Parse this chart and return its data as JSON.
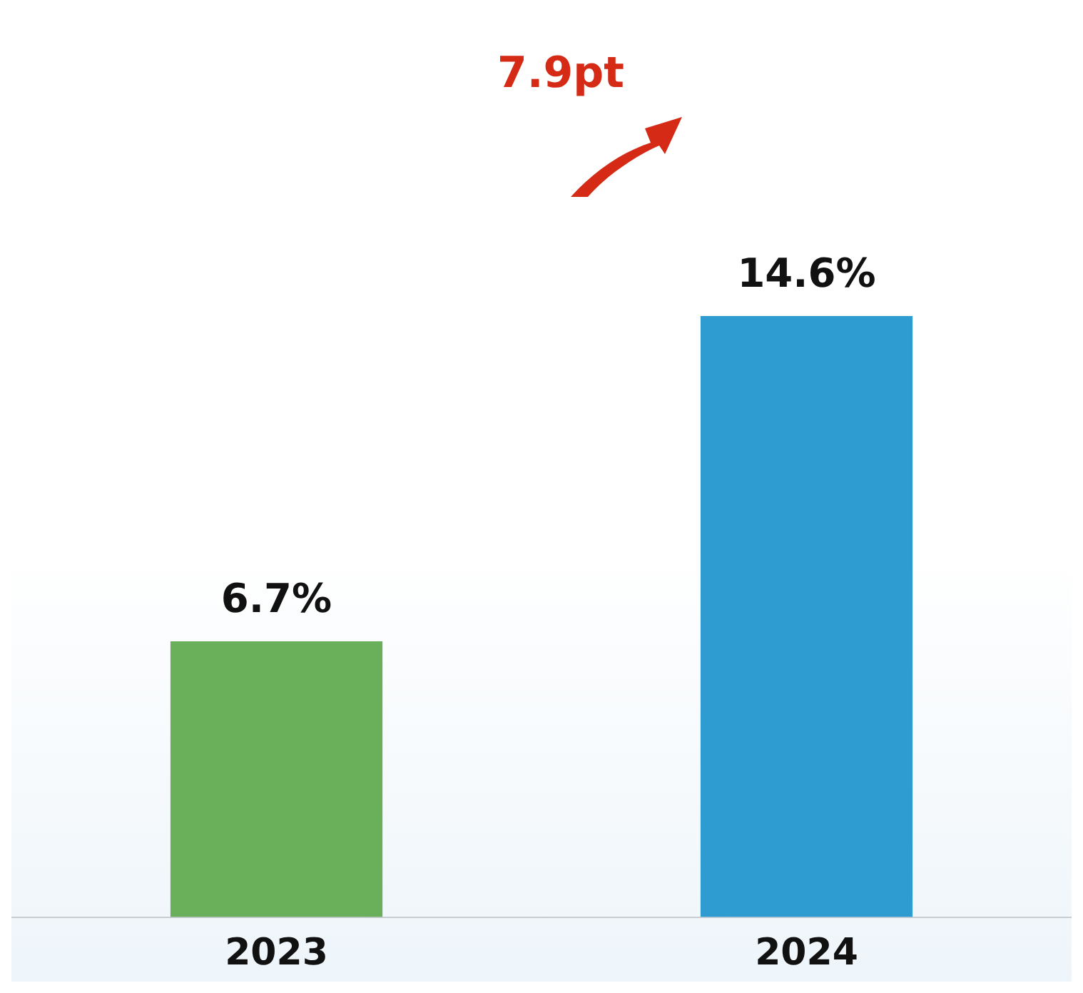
{
  "chart_data": {
    "type": "bar",
    "categories": [
      "2023",
      "2024"
    ],
    "values": [
      6.7,
      14.6
    ],
    "colors": [
      "#6aaf5a",
      "#2e9bd1"
    ],
    "value_labels": [
      "6.7%",
      "14.6%"
    ],
    "ylim": [
      0,
      22
    ],
    "tick_labels": "x",
    "grid": false,
    "legend": false,
    "annotations": [
      "7.9pt"
    ]
  }
}
